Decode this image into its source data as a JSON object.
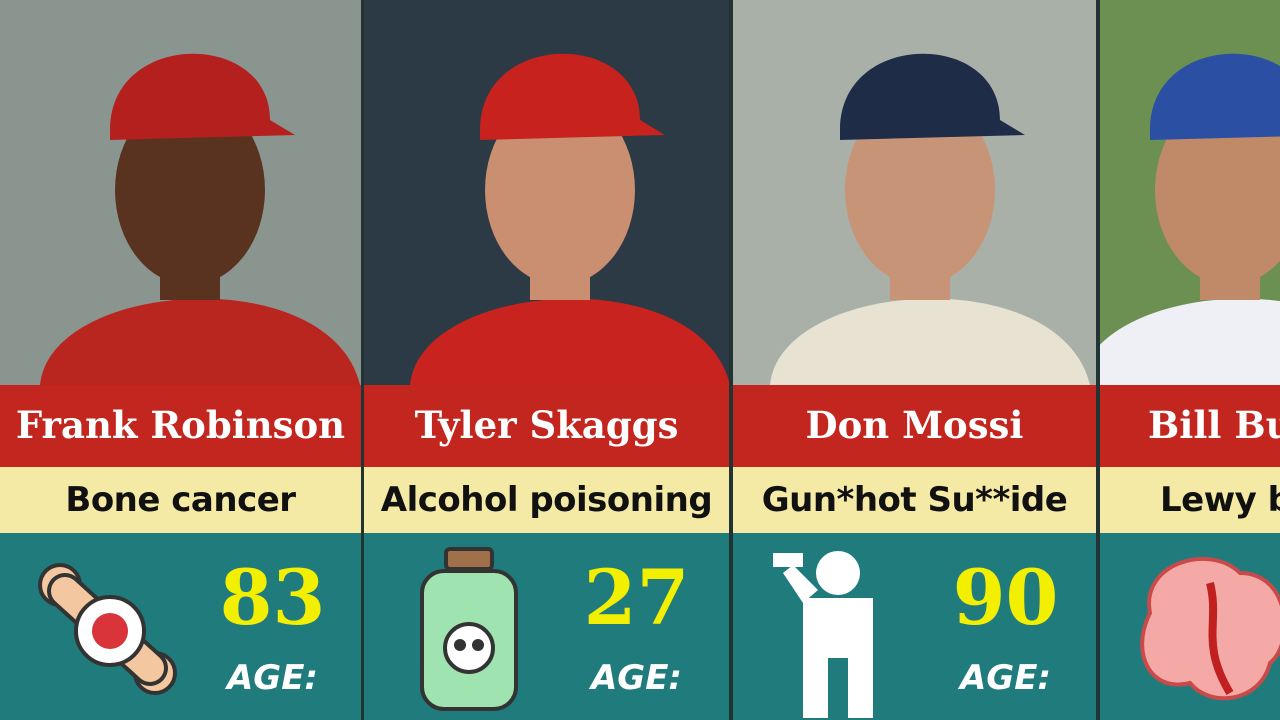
{
  "cards": [
    {
      "name": "Frank Robinson",
      "cause": "Bone cancer",
      "age": "83",
      "age_label": "AGE:"
    },
    {
      "name": "Tyler Skaggs",
      "cause": "Alcohol poisoning",
      "age": "27",
      "age_label": "AGE:"
    },
    {
      "name": "Don Mossi",
      "cause": "Gun*hot Su**ide",
      "age": "90",
      "age_label": "AGE:"
    },
    {
      "name": "Bill Bu",
      "cause": "Lewy b"
    }
  ]
}
